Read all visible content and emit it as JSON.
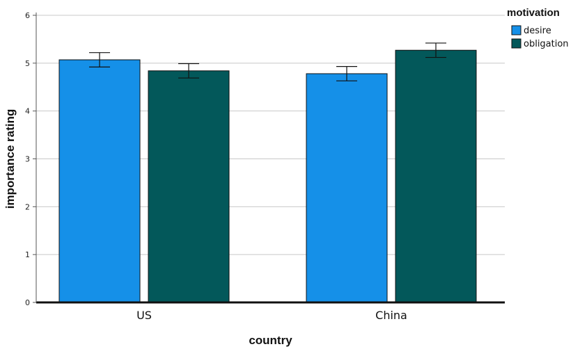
{
  "chart_data": {
    "type": "bar",
    "categories": [
      "US",
      "China"
    ],
    "series": [
      {
        "name": "desire",
        "color": "#1590e8",
        "values": [
          5.07,
          4.78
        ],
        "error": [
          [
            4.92,
            5.22
          ],
          [
            4.63,
            4.93
          ]
        ]
      },
      {
        "name": "obligation",
        "color": "#03585a",
        "values": [
          4.84,
          5.27
        ],
        "error": [
          [
            4.69,
            4.99
          ],
          [
            5.12,
            5.42
          ]
        ]
      }
    ],
    "xlabel": "country",
    "ylabel": "importance rating",
    "ylim": [
      0,
      6
    ],
    "yticks": [
      "0",
      "1",
      "2",
      "3",
      "4",
      "5",
      "6"
    ],
    "grid": true,
    "legend": {
      "title": "motivation",
      "position": "top-right"
    }
  }
}
